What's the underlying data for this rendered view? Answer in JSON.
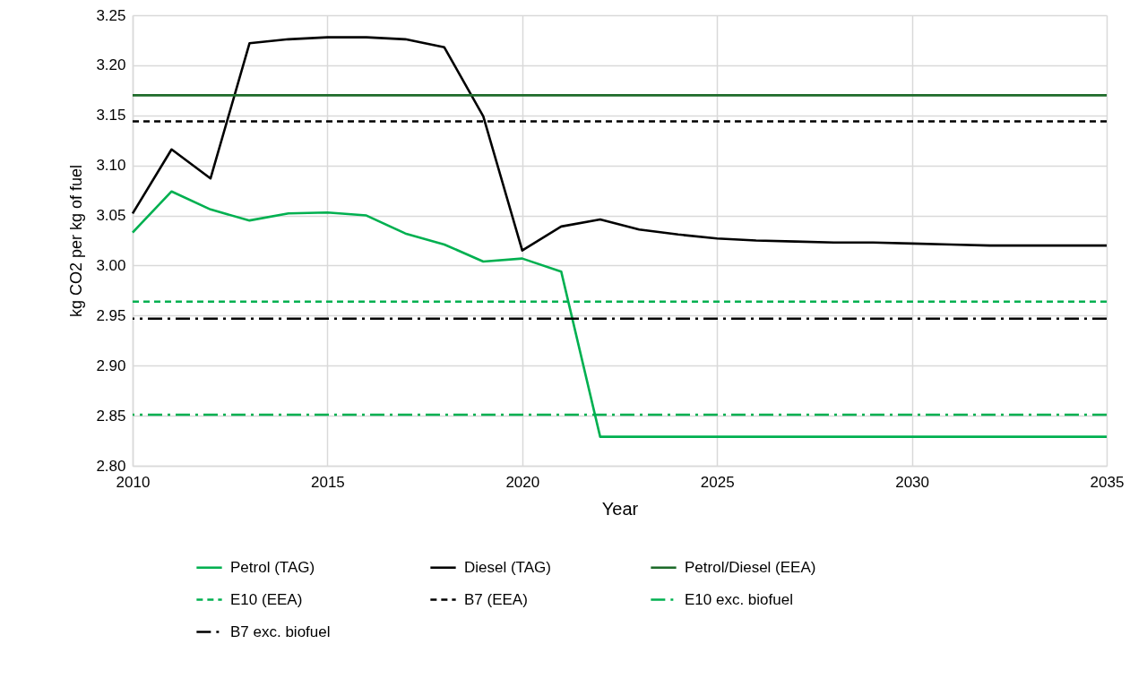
{
  "chart_data": {
    "type": "line",
    "xlabel": "Year",
    "ylabel": "kg CO2 per kg of fuel",
    "xlim": [
      2010,
      2035
    ],
    "xticks": [
      2010,
      2015,
      2020,
      2025,
      2030,
      2035
    ],
    "ylim": [
      2.8,
      3.25
    ],
    "yticks": [
      {
        "value": 2.8,
        "label": "2.80"
      },
      {
        "value": 2.85,
        "label": "2.85"
      },
      {
        "value": 2.9,
        "label": "2.90"
      },
      {
        "value": 2.95,
        "label": "2.95"
      },
      {
        "value": 3.0,
        "label": "3.00"
      },
      {
        "value": 3.05,
        "label": "3.05"
      },
      {
        "value": 3.1,
        "label": "3.10"
      },
      {
        "value": 3.15,
        "label": "3.15"
      },
      {
        "value": 3.2,
        "label": "3.20"
      },
      {
        "value": 3.25,
        "label": "3.25"
      }
    ],
    "grid": true,
    "legend": "bottom",
    "marker": "none",
    "x": [
      2010,
      2011,
      2012,
      2013,
      2014,
      2015,
      2016,
      2017,
      2018,
      2019,
      2020,
      2021,
      2022,
      2023,
      2024,
      2025,
      2026,
      2027,
      2028,
      2029,
      2030,
      2031,
      2032,
      2033,
      2034,
      2035
    ],
    "series": [
      {
        "name": "Petrol (TAG)",
        "color": "#00b050",
        "line_style": "solid",
        "values": [
          3.033,
          3.074,
          3.056,
          3.045,
          3.052,
          3.053,
          3.05,
          3.032,
          3.021,
          3.004,
          3.007,
          2.994,
          2.829,
          2.829,
          2.829,
          2.829,
          2.829,
          2.829,
          2.829,
          2.829,
          2.829,
          2.829,
          2.829,
          2.829,
          2.829,
          2.829
        ]
      },
      {
        "name": "Diesel (TAG)",
        "color": "#000000",
        "line_style": "solid",
        "values": [
          3.052,
          3.116,
          3.087,
          3.222,
          3.226,
          3.228,
          3.228,
          3.226,
          3.218,
          3.149,
          3.015,
          3.039,
          3.046,
          3.036,
          3.031,
          3.027,
          3.025,
          3.024,
          3.023,
          3.023,
          3.022,
          3.021,
          3.02,
          3.02,
          3.02,
          3.02
        ]
      }
    ],
    "ref_lines": [
      {
        "axis": "y",
        "value": 3.17,
        "label": "Petrol/Diesel (EEA)",
        "color": "#1e6b2a",
        "line_style": "solid"
      },
      {
        "axis": "y",
        "value": 2.964,
        "label": "E10 (EEA)",
        "color": "#00b050",
        "line_style": "dashed"
      },
      {
        "axis": "y",
        "value": 3.144,
        "label": "B7 (EEA)",
        "color": "#000000",
        "line_style": "dashed"
      },
      {
        "axis": "y",
        "value": 2.851,
        "label": "E10 exc. biofuel",
        "color": "#00b050",
        "line_style": "dashdot"
      },
      {
        "axis": "y",
        "value": 2.947,
        "label": "B7 exc. biofuel",
        "color": "#000000",
        "line_style": "dashdot"
      }
    ]
  }
}
